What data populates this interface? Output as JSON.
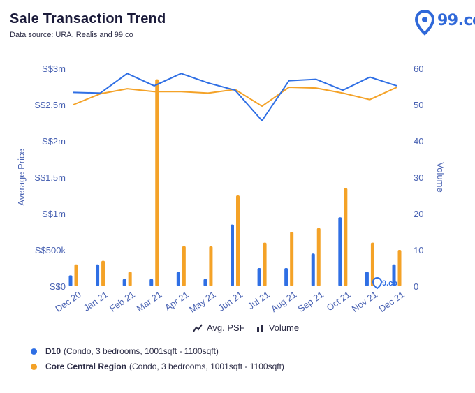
{
  "header": {
    "title": "Sale Transaction Trend",
    "subtitle": "Data source: URA, Realis and 99.co",
    "logo_text": "99.co"
  },
  "colors": {
    "series_a": "#2f6fe4",
    "series_b": "#f4a227",
    "axis_text": "#4a63b3",
    "grid": "#ffffff"
  },
  "toggles": {
    "avg_psf_label": "Avg. PSF",
    "volume_label": "Volume"
  },
  "legend": [
    {
      "name": "D10",
      "detail": "(Condo, 3 bedrooms, 1001sqft - 1100sqft)"
    },
    {
      "name": "Core Central Region",
      "detail": "(Condo, 3 bedrooms, 1001sqft - 1100sqft)"
    }
  ],
  "chart_data": {
    "type": "bar+line",
    "categories": [
      "Dec 20",
      "Jan 21",
      "Feb 21",
      "Mar 21",
      "Apr 21",
      "May 21",
      "Jun 21",
      "Jul 21",
      "Aug 21",
      "Sep 21",
      "Oct 21",
      "Nov 21",
      "Dec 21"
    ],
    "ylabel": "Average Price",
    "y2label": "Volume",
    "y_ticks": [
      "S$0",
      "S$500k",
      "S$1m",
      "S$1.5m",
      "S$2m",
      "S$2.5m",
      "S$3m"
    ],
    "ylim": [
      0,
      3000000
    ],
    "y2_ticks": [
      "0",
      "10",
      "20",
      "30",
      "40",
      "50",
      "60"
    ],
    "y2lim": [
      0,
      60
    ],
    "price_series": [
      {
        "name": "D10",
        "values": [
          2670000,
          2660000,
          2930000,
          2760000,
          2930000,
          2800000,
          2700000,
          2280000,
          2830000,
          2850000,
          2700000,
          2880000,
          2760000
        ]
      },
      {
        "name": "Core Central Region",
        "values": [
          2500000,
          2650000,
          2720000,
          2680000,
          2680000,
          2660000,
          2710000,
          2480000,
          2740000,
          2730000,
          2660000,
          2570000,
          2740000
        ]
      }
    ],
    "volume_series": [
      {
        "name": "D10",
        "values": [
          3,
          6,
          2,
          2,
          4,
          2,
          17,
          5,
          5,
          9,
          19,
          4,
          6
        ]
      },
      {
        "name": "Core Central Region",
        "values": [
          6,
          7,
          4,
          57,
          11,
          11,
          25,
          12,
          15,
          16,
          27,
          12,
          10
        ]
      }
    ]
  }
}
